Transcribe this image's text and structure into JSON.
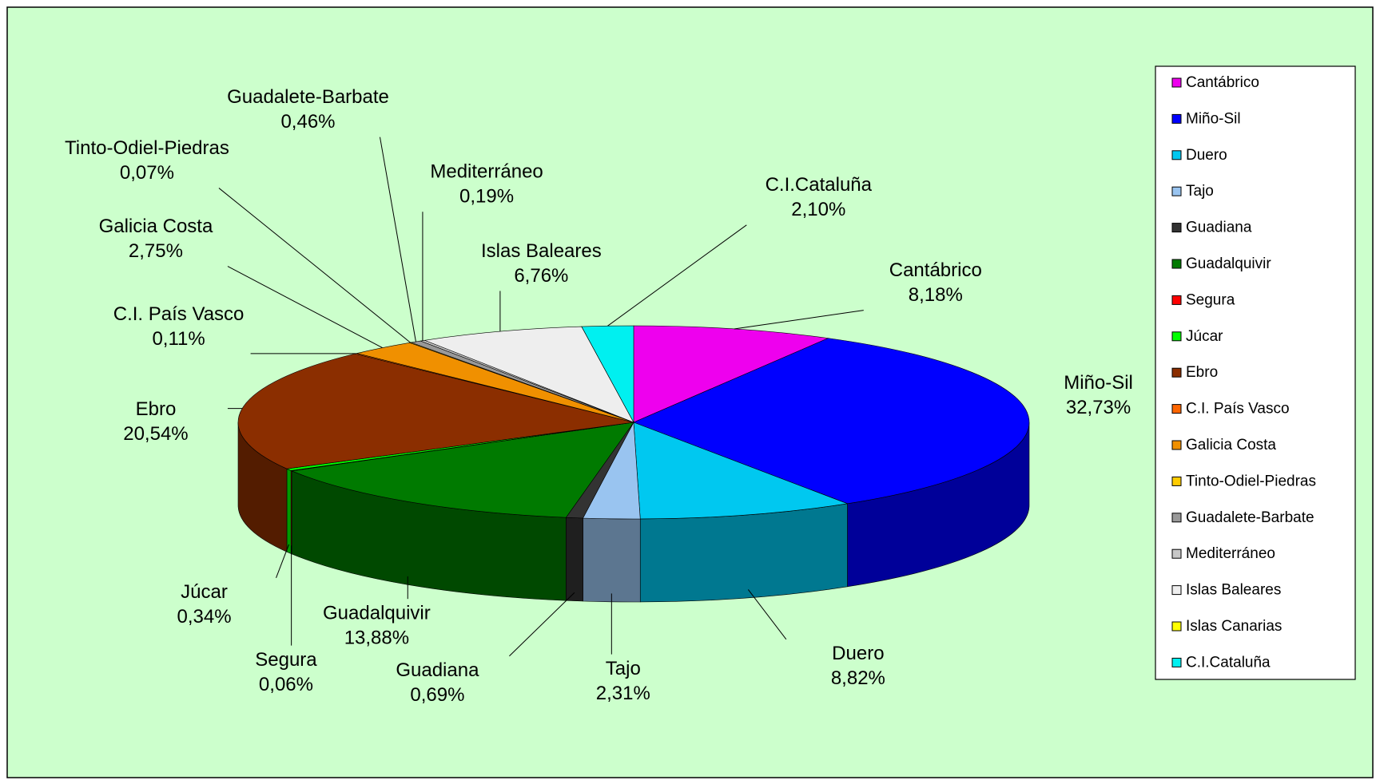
{
  "chart_data": {
    "type": "pie3d",
    "categories": [
      "Cantábrico",
      "Miño-Sil",
      "Duero",
      "Tajo",
      "Guadiana",
      "Guadalquivir",
      "Segura",
      "Júcar",
      "Ebro",
      "C.I. País Vasco",
      "Galicia Costa",
      "Tinto-Odiel-Piedras",
      "Guadalete-Barbate",
      "Mediterráneo",
      "Islas Baleares",
      "Islas Canarias",
      "C.I.Cataluña"
    ],
    "values": [
      8.18,
      32.73,
      8.82,
      2.31,
      0.69,
      13.88,
      0.06,
      0.34,
      20.54,
      0.11,
      2.75,
      0.07,
      0.46,
      0.19,
      6.76,
      0,
      2.1
    ],
    "value_labels": [
      "8,18%",
      "32,73%",
      "8,82%",
      "2,31%",
      "0,69%",
      "13,88%",
      "0,06%",
      "0,34%",
      "20,54%",
      "0,11%",
      "2,75%",
      "0,07%",
      "0,46%",
      "0,19%",
      "6,76%",
      null,
      "2,10%"
    ],
    "colors": [
      "#ee00ee",
      "#0000ff",
      "#00c8f0",
      "#99c4f0",
      "#333333",
      "#007a00",
      "#ff0000",
      "#00ff00",
      "#8b2e00",
      "#ff6600",
      "#f09000",
      "#ffcc00",
      "#999999",
      "#c8c8c8",
      "#eeeeee",
      "#ffff00",
      "#00f0f0"
    ],
    "legend": "right"
  }
}
